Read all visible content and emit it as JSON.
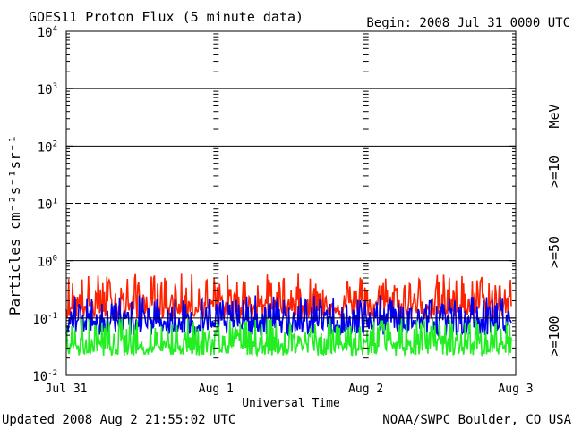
{
  "chart_data": {
    "type": "line",
    "title": "GOES11 Proton Flux (5 minute data)",
    "begin_label": "Begin: 2008 Jul 31 0000 UTC",
    "xlabel": "Universal Time",
    "ylabel": "Particles cm⁻²s⁻¹sr⁻¹",
    "ylog": true,
    "ylim": [
      0.01,
      10000
    ],
    "yticks": [
      {
        "value": 0.01,
        "base": "10",
        "exp": "-2"
      },
      {
        "value": 0.1,
        "base": "10",
        "exp": "-1"
      },
      {
        "value": 1,
        "base": "10",
        "exp": "0"
      },
      {
        "value": 10,
        "base": "10",
        "exp": "1"
      },
      {
        "value": 100,
        "base": "10",
        "exp": "2"
      },
      {
        "value": 1000,
        "base": "10",
        "exp": "3"
      },
      {
        "value": 10000,
        "base": "10",
        "exp": "4"
      }
    ],
    "x_range": [
      "2008-07-31 00:00",
      "2008-08-03 00:00"
    ],
    "xticks": [
      "Jul 31",
      "Aug 1",
      "Aug 2",
      "Aug 3"
    ],
    "reference_lines": [
      {
        "value": 1000,
        "style": "solid"
      },
      {
        "value": 100,
        "style": "solid"
      },
      {
        "value": 10,
        "style": "dashed"
      },
      {
        "value": 1,
        "style": "solid"
      },
      {
        "value": 0.1,
        "style": "solid"
      }
    ],
    "unit_label": "MeV",
    "series": [
      {
        "name": ">=10",
        "color": "#ff2200",
        "typical": 0.17,
        "low": 0.1,
        "high": 0.6
      },
      {
        "name": ">=50",
        "color": "#0000ee",
        "typical": 0.09,
        "low": 0.05,
        "high": 0.25
      },
      {
        "name": ">=100",
        "color": "#22ee22",
        "typical": 0.035,
        "low": 0.022,
        "high": 0.1
      }
    ],
    "grid": false
  },
  "footer": {
    "updated": "Updated 2008 Aug  2 21:55:02 UTC",
    "source": "NOAA/SWPC Boulder, CO USA"
  }
}
